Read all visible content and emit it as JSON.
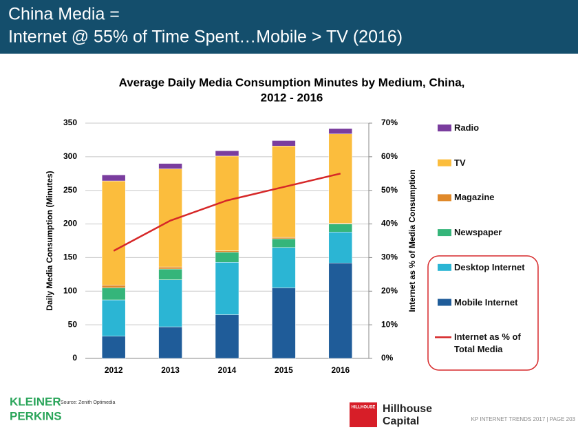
{
  "header": {
    "title_lines": [
      "China Media =",
      "Internet @ 55% of Time Spent…Mobile > TV (2016)"
    ]
  },
  "chart_data": {
    "type": "stacked_bar_line",
    "title": [
      "Average Daily Media Consumption Minutes by Medium, China,",
      "2012 - 2016"
    ],
    "y_label": "Daily Media Consumption (Minutes)",
    "y2_label": "Internet as % of Media Consumption",
    "categories": [
      "2012",
      "2013",
      "2014",
      "2015",
      "2016"
    ],
    "ylim": [
      0,
      350
    ],
    "yticks": [
      0,
      50,
      100,
      150,
      200,
      250,
      300,
      350
    ],
    "y2lim": [
      0,
      70
    ],
    "y2ticks": [
      {
        "value": 0,
        "label": "0%"
      },
      {
        "value": 10,
        "label": "10%"
      },
      {
        "value": 20,
        "label": "20%"
      },
      {
        "value": 30,
        "label": "30%"
      },
      {
        "value": 40,
        "label": "40%"
      },
      {
        "value": 50,
        "label": "50%"
      },
      {
        "value": 60,
        "label": "60%"
      },
      {
        "value": 70,
        "label": "70%"
      }
    ],
    "grid": true,
    "series": [
      {
        "name": "Mobile Internet",
        "color": "#1f5c99",
        "values": [
          33,
          47,
          65,
          105,
          142
        ]
      },
      {
        "name": "Desktop Internet",
        "color": "#2bb5d4",
        "values": [
          54,
          70,
          78,
          60,
          46
        ]
      },
      {
        "name": "Newspaper",
        "color": "#35b57a",
        "values": [
          18,
          16,
          15,
          13,
          12
        ]
      },
      {
        "name": "Magazine",
        "color": "#e0892a",
        "values": [
          4,
          3,
          2,
          2,
          1
        ]
      },
      {
        "name": "TV",
        "color": "#fbbd3d",
        "values": [
          155,
          146,
          141,
          136,
          133
        ]
      },
      {
        "name": "Radio",
        "color": "#7a3d9e",
        "values": [
          9,
          8,
          8,
          8,
          8
        ]
      },
      {
        "name": "Internet as % of Total Media",
        "color": "#d62728",
        "axis": "y2",
        "kind": "line",
        "values": [
          32,
          41,
          47,
          51,
          55
        ]
      }
    ]
  },
  "footer": {
    "logo_lines": [
      "KLEINER",
      "PERKINS"
    ],
    "source": "Source: Zenith Optimedia",
    "badge": "HILLHOUSE",
    "company_lines": [
      "Hillhouse",
      "Capital"
    ],
    "page": "KP INTERNET TRENDS 2017  |  PAGE 203"
  }
}
